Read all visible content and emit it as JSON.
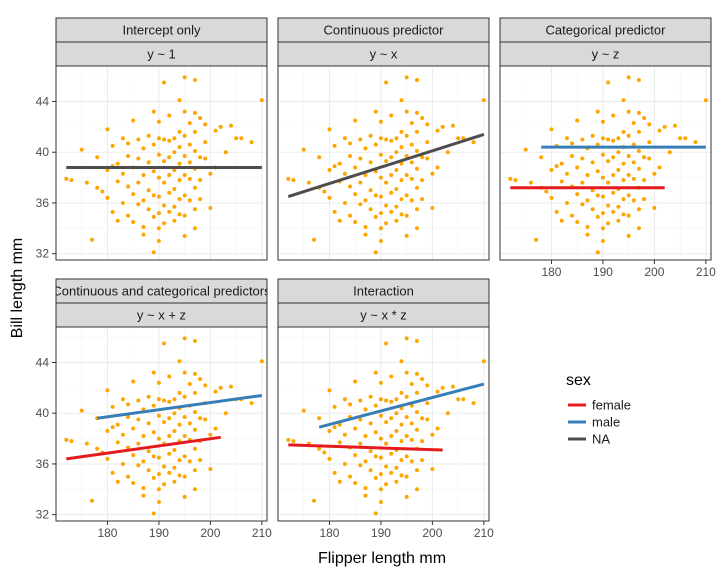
{
  "chart_data": {
    "type": "scatter",
    "xlabel": "Flipper length mm",
    "ylabel": "Bill length mm",
    "xlim": [
      170,
      211
    ],
    "ylim": [
      31.5,
      46.8
    ],
    "x_ticks": [
      180,
      190,
      200,
      210
    ],
    "y_ticks": [
      32,
      36,
      40,
      44
    ],
    "point_color": "#FFA500",
    "points": [
      [
        172,
        37.9
      ],
      [
        173,
        37.8
      ],
      [
        175,
        40.2
      ],
      [
        176,
        37.6
      ],
      [
        177,
        33.1
      ],
      [
        178,
        37.2
      ],
      [
        178,
        39.6
      ],
      [
        179,
        36.9
      ],
      [
        180,
        41.8
      ],
      [
        180,
        38.6
      ],
      [
        180,
        36.4
      ],
      [
        181,
        40.5
      ],
      [
        181,
        38.9
      ],
      [
        181,
        35.3
      ],
      [
        182,
        39.1
      ],
      [
        182,
        37.7
      ],
      [
        182,
        34.6
      ],
      [
        183,
        41.1
      ],
      [
        183,
        38.3
      ],
      [
        183,
        36.0
      ],
      [
        184,
        39.7
      ],
      [
        184,
        37.3
      ],
      [
        184,
        35.0
      ],
      [
        184,
        40.7
      ],
      [
        185,
        42.5
      ],
      [
        185,
        38.8
      ],
      [
        185,
        36.7
      ],
      [
        185,
        34.5
      ],
      [
        186,
        41.0
      ],
      [
        186,
        39.5
      ],
      [
        186,
        37.6
      ],
      [
        186,
        35.9
      ],
      [
        187,
        40.3
      ],
      [
        187,
        38.2
      ],
      [
        187,
        36.2
      ],
      [
        187,
        34.1
      ],
      [
        187,
        33.5
      ],
      [
        188,
        41.3
      ],
      [
        188,
        39.2
      ],
      [
        188,
        37.0
      ],
      [
        188,
        35.5
      ],
      [
        189,
        43.2
      ],
      [
        189,
        40.6
      ],
      [
        189,
        38.5
      ],
      [
        189,
        36.6
      ],
      [
        189,
        34.9
      ],
      [
        189,
        32.1
      ],
      [
        190,
        42.4
      ],
      [
        190,
        41.1
      ],
      [
        190,
        39.8
      ],
      [
        190,
        38.0
      ],
      [
        190,
        36.5
      ],
      [
        190,
        35.2
      ],
      [
        190,
        34.0
      ],
      [
        190,
        33.0
      ],
      [
        191,
        45.5
      ],
      [
        191,
        41.0
      ],
      [
        191,
        39.3
      ],
      [
        191,
        37.6
      ],
      [
        191,
        35.8
      ],
      [
        191,
        34.4
      ],
      [
        192,
        42.9
      ],
      [
        192,
        40.9
      ],
      [
        192,
        39.6
      ],
      [
        192,
        38.2
      ],
      [
        192,
        36.8
      ],
      [
        192,
        35.3
      ],
      [
        193,
        41.1
      ],
      [
        193,
        40.0
      ],
      [
        193,
        38.6
      ],
      [
        193,
        37.1
      ],
      [
        193,
        35.7
      ],
      [
        193,
        34.6
      ],
      [
        194,
        44.1
      ],
      [
        194,
        41.6
      ],
      [
        194,
        40.4
      ],
      [
        194,
        39.1
      ],
      [
        194,
        37.8
      ],
      [
        194,
        36.3
      ],
      [
        194,
        35.1
      ],
      [
        195,
        45.9
      ],
      [
        195,
        43.2
      ],
      [
        195,
        41.3
      ],
      [
        195,
        39.7
      ],
      [
        195,
        38.2
      ],
      [
        195,
        36.6
      ],
      [
        195,
        35.0
      ],
      [
        195,
        33.4
      ],
      [
        196,
        42.3
      ],
      [
        196,
        40.6
      ],
      [
        196,
        39.2
      ],
      [
        196,
        37.9
      ],
      [
        196,
        36.2
      ],
      [
        197,
        45.7
      ],
      [
        197,
        43.1
      ],
      [
        197,
        41.6
      ],
      [
        197,
        40.1
      ],
      [
        197,
        38.7
      ],
      [
        197,
        37.2
      ],
      [
        197,
        35.5
      ],
      [
        197,
        34.0
      ],
      [
        198,
        42.7
      ],
      [
        198,
        39.6
      ],
      [
        198,
        37.8
      ],
      [
        198,
        36.3
      ],
      [
        199,
        42.2
      ],
      [
        199,
        40.8
      ],
      [
        199,
        39.5
      ],
      [
        200,
        38.3
      ],
      [
        200,
        35.6
      ],
      [
        201,
        41.7
      ],
      [
        201,
        38.8
      ],
      [
        202,
        42.0
      ],
      [
        203,
        40.0
      ],
      [
        204,
        42.1
      ],
      [
        205,
        41.1
      ],
      [
        206,
        41.1
      ],
      [
        208,
        40.8
      ],
      [
        210,
        44.1
      ]
    ],
    "panels": [
      {
        "strip1": "Intercept only",
        "strip2": "y ~ 1",
        "lines": [
          {
            "series": "NA",
            "x": [
              172,
              210
            ],
            "y": [
              38.8,
              38.8
            ]
          }
        ]
      },
      {
        "strip1": "Continuous predictor",
        "strip2": "y ~ x",
        "lines": [
          {
            "series": "NA",
            "x": [
              172,
              210
            ],
            "y": [
              36.5,
              41.4
            ]
          }
        ]
      },
      {
        "strip1": "Categorical predictor",
        "strip2": "y ~ z",
        "lines": [
          {
            "series": "female",
            "x": [
              172,
              202
            ],
            "y": [
              37.2,
              37.2
            ]
          },
          {
            "series": "male",
            "x": [
              178,
              210
            ],
            "y": [
              40.4,
              40.4
            ]
          }
        ]
      },
      {
        "strip1": "Continuous and categorical predictors",
        "strip2": "y ~ x + z",
        "lines": [
          {
            "series": "female",
            "x": [
              172,
              202
            ],
            "y": [
              36.4,
              38.1
            ]
          },
          {
            "series": "male",
            "x": [
              178,
              210
            ],
            "y": [
              39.6,
              41.4
            ]
          }
        ]
      },
      {
        "strip1": "Interaction",
        "strip2": "y ~ x * z",
        "lines": [
          {
            "series": "female",
            "x": [
              172,
              202
            ],
            "y": [
              37.5,
              37.1
            ]
          },
          {
            "series": "male",
            "x": [
              178,
              210
            ],
            "y": [
              38.9,
              42.3
            ]
          }
        ]
      }
    ],
    "legend": {
      "title": "sex",
      "items": [
        {
          "label": "female",
          "color": "#E41A1C"
        },
        {
          "label": "male",
          "color": "#377EB8"
        },
        {
          "label": "NA",
          "color": "#4D4D4D"
        }
      ]
    }
  }
}
